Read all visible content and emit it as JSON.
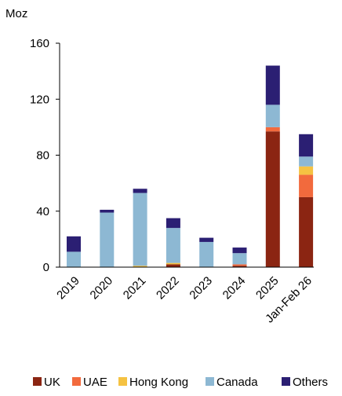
{
  "chart_data": {
    "type": "bar",
    "stacked": true,
    "unit_label": "Moz",
    "categories": [
      "2019",
      "2020",
      "2021",
      "2022",
      "2023",
      "2024",
      "2025",
      "Jan-Feb 26"
    ],
    "ylim": [
      0,
      160
    ],
    "yticks": [
      0,
      40,
      80,
      120,
      160
    ],
    "grid": false,
    "legend_position": "bottom",
    "series": [
      {
        "name": "UK",
        "color": "#8B2512",
        "values": [
          0,
          0,
          0,
          2,
          0,
          1,
          97,
          50
        ]
      },
      {
        "name": "UAE",
        "color": "#F26A3D",
        "values": [
          0,
          0,
          0,
          0,
          0,
          1,
          3,
          16
        ]
      },
      {
        "name": "Hong Kong",
        "color": "#F5C242",
        "values": [
          0,
          0,
          1,
          1,
          0,
          0,
          0,
          6
        ]
      },
      {
        "name": "Canada",
        "color": "#8DB8D3",
        "values": [
          11,
          39,
          52,
          25,
          18,
          8,
          16,
          7
        ]
      },
      {
        "name": "Others",
        "color": "#2B1F73",
        "values": [
          11,
          2,
          3,
          7,
          3,
          4,
          28,
          16
        ]
      }
    ]
  }
}
